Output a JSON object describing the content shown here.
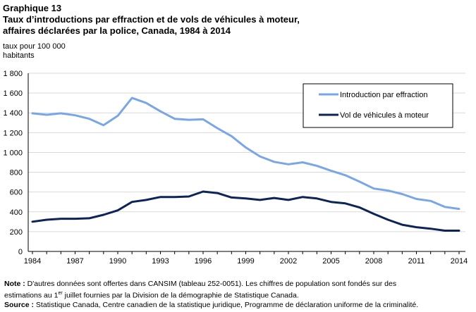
{
  "header": {
    "graph_number": "Graphique 13",
    "title": "Taux d’introductions par effraction et de vols de véhicules à moteur,\naffaires déclarées par la police, Canada, 1984 à 2014"
  },
  "chart_data": {
    "type": "line",
    "title": "Taux d’introductions par effraction et de vols de véhicules à moteur, affaires déclarées par la police, Canada, 1984 à 2014",
    "ylabel": "taux pour 100 000\nhabitants",
    "xlabel": "",
    "ylim": [
      0,
      1800
    ],
    "yticks": [
      0,
      200,
      400,
      600,
      800,
      1000,
      1200,
      1400,
      1600,
      1800
    ],
    "ytick_labels": [
      "0",
      "200",
      "400",
      "600",
      "800",
      "1 000",
      "1 200",
      "1 400",
      "1 600",
      "1 800"
    ],
    "xlim": [
      1984,
      2014
    ],
    "xticks": [
      1984,
      1987,
      1990,
      1993,
      1996,
      1999,
      2002,
      2005,
      2008,
      2011,
      2014
    ],
    "grid": "horizontal",
    "legend_position": "top-right",
    "x": [
      1984,
      1985,
      1986,
      1987,
      1988,
      1989,
      1990,
      1991,
      1992,
      1993,
      1994,
      1995,
      1996,
      1997,
      1998,
      1999,
      2000,
      2001,
      2002,
      2003,
      2004,
      2005,
      2006,
      2007,
      2008,
      2009,
      2010,
      2011,
      2012,
      2013,
      2014
    ],
    "series": [
      {
        "name": "Introduction par effraction",
        "color": "#7aa6e8",
        "values": [
          1395,
          1380,
          1395,
          1375,
          1340,
          1275,
          1370,
          1550,
          1500,
          1415,
          1340,
          1330,
          1335,
          1245,
          1165,
          1050,
          960,
          905,
          880,
          900,
          865,
          815,
          770,
          705,
          635,
          615,
          580,
          530,
          510,
          450,
          430
        ]
      },
      {
        "name": "Vol de véhicules à moteur",
        "color": "#0d2456",
        "values": [
          300,
          320,
          330,
          330,
          335,
          370,
          415,
          500,
          520,
          550,
          550,
          555,
          605,
          590,
          545,
          535,
          520,
          540,
          520,
          550,
          535,
          500,
          485,
          445,
          380,
          320,
          270,
          245,
          230,
          210,
          210
        ]
      }
    ]
  },
  "notes": {
    "note_label": "Note :",
    "note_text_1": " D'autres  données sont offertes dans CANSIM  (tableau 252-0051).  Les chiffres de population sont fondés sur des",
    "note_text_2a": "estimations au 1",
    "note_text_2sup": "er",
    "note_text_2b": " juillet fournies par la Division de la démographie de Statistique Canada.",
    "source_label": "Source :",
    "source_text": " Statistique Canada, Centre canadien de la statistique juridique, Programme de déclaration uniforme de la criminalité."
  }
}
